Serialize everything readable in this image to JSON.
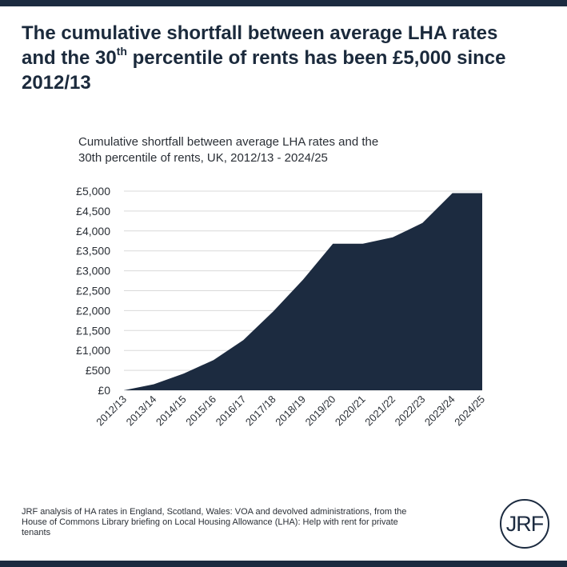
{
  "headline": {
    "line1": "The cumulative shortfall between average LHA rates",
    "line2_pre": "and the 30",
    "line2_sup": "th",
    "line2_post": " percentile of rents has been £5,000 since",
    "line3": "2012/13"
  },
  "chart_data": {
    "type": "area",
    "title_line1": "Cumulative shortfall between average LHA rates and the",
    "title_line2": "30th percentile of rents, UK, 2012/13 - 2024/25",
    "categories": [
      "2012/13",
      "2013/14",
      "2014/15",
      "2015/16",
      "2016/17",
      "2017/18",
      "2018/19",
      "2019/20",
      "2020/21",
      "2021/22",
      "2022/23",
      "2023/24",
      "2024/25"
    ],
    "values": [
      0,
      150,
      420,
      760,
      1260,
      1980,
      2780,
      3680,
      3680,
      3840,
      4200,
      4950,
      4950
    ],
    "ylim": [
      0,
      5000
    ],
    "yticks": [
      "£0",
      "£500",
      "£1,000",
      "£1,500",
      "£2,000",
      "£2,500",
      "£3,000",
      "£3,500",
      "£4,000",
      "£4,500",
      "£5,000"
    ],
    "grid": true,
    "fill_color": "#1c2b40"
  },
  "source": {
    "line1": "JRF analysis of HA rates in England, Scotland, Wales: VOA and devolved administrations, from the",
    "line2": "House of Commons Library briefing on  Local Housing Allowance (LHA): Help with rent for private",
    "line3": "tenants"
  },
  "logo": {
    "text": "JRF"
  },
  "colors": {
    "brand": "#1c2b40"
  }
}
